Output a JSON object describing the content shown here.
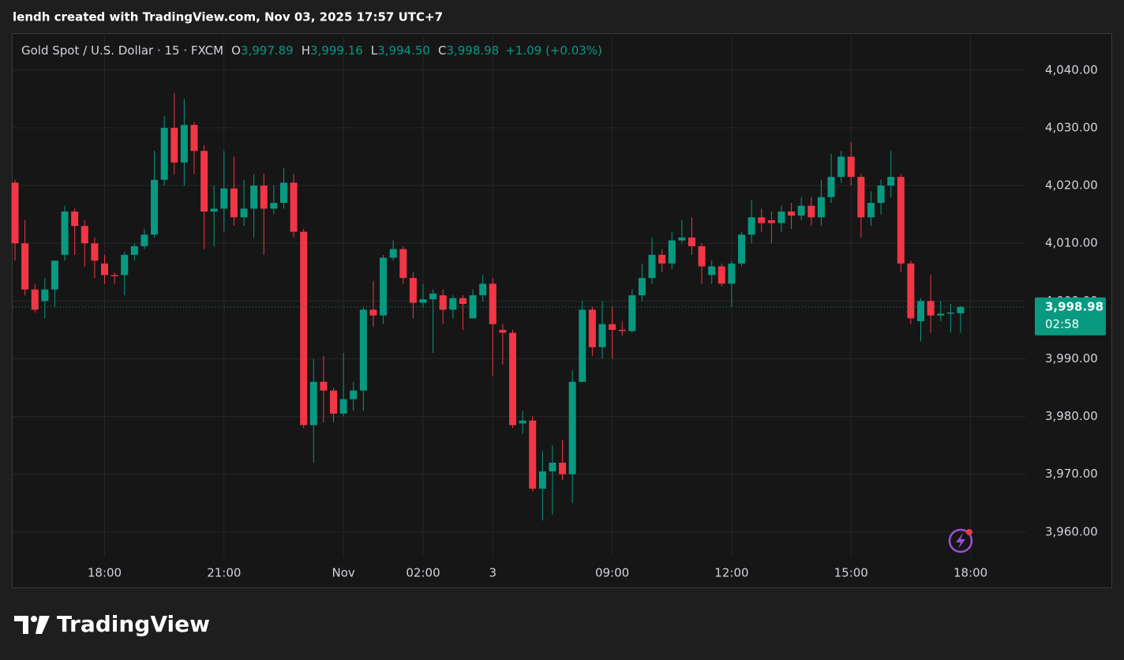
{
  "chart_data": {
    "type": "candlestick",
    "caption": "lendh created with TradingView.com, Nov 03, 2025 17:57 UTC+7",
    "symbol": "Gold Spot / U.S. Dollar · 15 · FXCM",
    "ohlc_header": [
      {
        "key": "O",
        "value": "3,997.89"
      },
      {
        "key": "H",
        "value": "3,999.16"
      },
      {
        "key": "L",
        "value": "3,994.50"
      },
      {
        "key": "C",
        "value": "3,998.98"
      }
    ],
    "change": "+1.09 (+0.03%)",
    "brand": "TradingView",
    "up_color": "#089981",
    "down_color": "#f23645",
    "grid": true,
    "open": [
      4020.5,
      4010,
      4002,
      4000,
      4002,
      4008,
      4015.5,
      4013,
      4010,
      4006.5,
      4004.5,
      4004.5,
      4008,
      4009.5,
      4011.5,
      4021,
      4030,
      4024,
      4030.5,
      4026,
      4015.5,
      4016,
      4019.5,
      4014.5,
      4016,
      4020,
      4016,
      4017,
      4020.5,
      4012,
      3978.5,
      3986,
      3984.5,
      3980.5,
      3983,
      3984.5,
      3998.5,
      3997.5,
      4007.5,
      4009,
      4004,
      3999.7,
      4000.3,
      4001,
      3998.5,
      4000.5,
      3997,
      4001,
      4003,
      3995,
      3994.5,
      3978.8,
      3979.3,
      3967.5,
      3970.5,
      3972,
      3970,
      3986,
      3998.5,
      3992,
      3996,
      3995,
      3994.8,
      4001,
      4004,
      4008,
      4006.5,
      4010.5,
      4011,
      4009.5,
      4004.5,
      4006,
      4003,
      4006.5,
      4011.5,
      4014.5,
      4014,
      4013.5,
      4015.5,
      4014.8,
      4016.5,
      4014.5,
      4018,
      4021.5,
      4025,
      4021.5,
      4014.5,
      4017,
      4020,
      4021.5,
      4006.5,
      3996.5,
      4000,
      3997.5,
      3997.8,
      3997.89
    ],
    "high": [
      4021,
      4014,
      4003,
      4004,
      4007,
      4016.5,
      4016,
      4014,
      4011,
      4008,
      4005,
      4008.5,
      4010,
      4012.5,
      4026,
      4032,
      4036,
      4035,
      4031,
      4027,
      4020,
      4026,
      4025,
      4021,
      4022,
      4022,
      4020,
      4023,
      4022,
      4012.5,
      3990,
      3990.5,
      3985,
      3991,
      3986,
      3999,
      4003.5,
      4008,
      4010.5,
      4009.5,
      4005,
      4003,
      4002,
      4002,
      4001,
      4001,
      4002,
      4004.5,
      4004,
      3996,
      3995,
      3981,
      3980,
      3974,
      3975,
      3976,
      3988,
      4000,
      3999,
      4000,
      3999,
      3996.5,
      4002,
      4006.5,
      4011,
      4009,
      4012,
      4014,
      4014.5,
      4010,
      4007,
      4006.5,
      4007,
      4012,
      4017.5,
      4016,
      4015.5,
      4016.5,
      4017,
      4018,
      4018,
      4021,
      4025.5,
      4026,
      4027.5,
      4022,
      4019,
      4021,
      4026,
      4022,
      4007,
      4000.5,
      4004.5,
      4000,
      3999.5,
      3999.16
    ],
    "low": [
      4007,
      4001,
      3998,
      3997,
      3999,
      4007,
      4008,
      4006,
      4004,
      4003,
      4003,
      4001,
      4007,
      4009,
      4011,
      4020,
      4022,
      4020,
      4022,
      4009,
      4009.5,
      4012,
      4013,
      4013,
      4011,
      4008,
      4015,
      4016,
      4011,
      3978,
      3972,
      3979,
      3979,
      3980,
      3981,
      3981,
      3995.5,
      3996,
      4007,
      4003,
      3997,
      3999,
      3991,
      3996,
      3997,
      3995,
      3997,
      4000,
      3987,
      3989,
      3978,
      3977,
      3967,
      3962,
      3963,
      3969,
      3965,
      3986,
      3990.5,
      3990,
      3990,
      3994,
      3994.5,
      4000,
      4003,
      4005,
      4005.5,
      4010,
      4008,
      4003,
      4003,
      4002.5,
      3999,
      4006,
      4010,
      4012,
      4010,
      4012,
      4012.5,
      4014,
      4013,
      4013,
      4017,
      4020.5,
      4020,
      4011,
      4013,
      4015,
      4018,
      4005,
      3996,
      3993,
      3994.5,
      3996.5,
      3994.5,
      3994.5
    ],
    "close": [
      4010,
      4002,
      3998.5,
      4002,
      4007,
      4015.5,
      4013,
      4010,
      4007,
      4004.5,
      4004.3,
      4008,
      4009.5,
      4011.5,
      4021,
      4030,
      4024,
      4030.5,
      4026,
      4015.5,
      4016,
      4019.5,
      4014.5,
      4016,
      4020,
      4016,
      4017,
      4020.5,
      4012,
      3978.5,
      3986,
      3984.5,
      3980.5,
      3983,
      3984.5,
      3998.5,
      3997.5,
      4007.5,
      4009,
      4004,
      3999.7,
      4000.3,
      4001.3,
      3998.5,
      4000.5,
      3999.5,
      4001,
      4003,
      3996,
      3994.5,
      3978.5,
      3979.3,
      3967.5,
      3970.5,
      3972,
      3970,
      3986,
      3998.5,
      3992,
      3996,
      3995,
      3994.8,
      4001,
      4004,
      4008,
      4006.5,
      4010.5,
      4011,
      4009.5,
      4006,
      4006,
      4003,
      4006.5,
      4011.5,
      4014.5,
      4013.5,
      4013.5,
      4015.5,
      4014.8,
      4016.5,
      4014.5,
      4018,
      4021.5,
      4025,
      4021.5,
      4014.5,
      4017,
      4020,
      4021.5,
      4006.5,
      3997,
      4000,
      3997.5,
      3997.8,
      3998,
      3998.98
    ],
    "xticks": [
      {
        "value": 9,
        "label": "18:00"
      },
      {
        "value": 21,
        "label": "21:00"
      },
      {
        "value": 33,
        "label": "Nov"
      },
      {
        "value": 41,
        "label": "02:00"
      },
      {
        "value": 48,
        "label": "3"
      },
      {
        "value": 60,
        "label": "09:00"
      },
      {
        "value": 72,
        "label": "12:00"
      },
      {
        "value": 84,
        "label": "15:00"
      },
      {
        "value": 96,
        "label": "18:00"
      }
    ],
    "ylim": [
      3955.6,
      4046.4
    ],
    "yticks": [
      {
        "value": 3960,
        "label": "3,960.00"
      },
      {
        "value": 3970,
        "label": "3,970.00"
      },
      {
        "value": 3980,
        "label": "3,980.00"
      },
      {
        "value": 3990,
        "label": "3,990.00"
      },
      {
        "value": 4000,
        "label": "4,000.00"
      },
      {
        "value": 4010,
        "label": "4,010.00"
      },
      {
        "value": 4020,
        "label": "4,020.00"
      },
      {
        "value": 4030,
        "label": "4,030.00"
      },
      {
        "value": 4040,
        "label": "4,040.00"
      }
    ],
    "last_price": 3998.98,
    "last_price_label": "3,998.98",
    "countdown": "02:58"
  }
}
